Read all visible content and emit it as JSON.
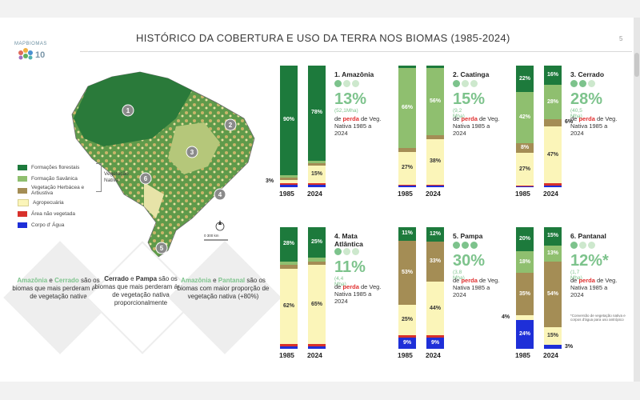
{
  "header": {
    "logo_num": "10",
    "logo_text": "MAPBIOMAS",
    "title": "HISTÓRICO DA COBERTURA E USO DA TERRA NOS BIOMAS (1985-2024)",
    "page_number": "5"
  },
  "colors": {
    "forest": "#1d7a3c",
    "savanna": "#8fbf6f",
    "herb": "#a48d55",
    "agro": "#fbf5b9",
    "nonveg": "#d8312b",
    "water": "#1e2fd8",
    "accent_green": "#7dc38c"
  },
  "legend": {
    "items": [
      {
        "label": "Formações florestais",
        "color": "#1d7a3c"
      },
      {
        "label": "Formação Savânica",
        "color": "#8fbf6f"
      },
      {
        "label": "Vegetação Herbácea e Arbustiva",
        "color": "#a48d55"
      },
      {
        "label": "Agropecuária",
        "color": "#fbf5b9"
      },
      {
        "label": "Área não vegetada",
        "color": "#d8312b"
      },
      {
        "label": "Corpo d' Água",
        "color": "#1e2fd8"
      }
    ],
    "bracket_label": "Vegetação Nativa",
    "scale_label": "0        300 km"
  },
  "map_markers": [
    "1",
    "2",
    "3",
    "4",
    "5",
    "6"
  ],
  "diamonds": [
    {
      "highlight1": "Amazônia",
      "mid1": " e ",
      "highlight2": "Cerrado",
      "rest": " são os biomas que mais perderam área de vegetação nativa"
    },
    {
      "highlight1": "Cerrado",
      "mid1": " e ",
      "highlight2": "Pampa",
      "rest": " são os biomas que mais perderam área de vegetação nativa proporcionalmente"
    },
    {
      "highlight1": "Amazônia",
      "mid1": " e ",
      "highlight2": "Pantanal",
      "rest": " são os biomas com maior proporção de vegetação nativa (+80%)"
    }
  ],
  "chart_data": [
    {
      "type": "bar",
      "title": "1. Amazônia",
      "categories": [
        "1985",
        "2024"
      ],
      "series": [
        {
          "name": "Formações florestais",
          "values": [
            90,
            78
          ]
        },
        {
          "name": "Formação Savânica",
          "values": [
            2,
            2
          ]
        },
        {
          "name": "Vegetação Herbácea e Arbustiva",
          "values": [
            2,
            2
          ]
        },
        {
          "name": "Agropecuária",
          "values": [
            3,
            15
          ]
        },
        {
          "name": "Área não vegetada",
          "values": [
            1,
            1
          ]
        },
        {
          "name": "Corpo d' Água",
          "values": [
            2,
            2
          ]
        }
      ],
      "labels": [
        [
          "90%",
          "",
          "",
          "3%",
          "",
          ""
        ],
        [
          "78%",
          "",
          "",
          "15%",
          "",
          ""
        ]
      ],
      "dots_filled": 1,
      "dots_total": 3,
      "big_number": "13%",
      "small_value": "(52,1Mha)",
      "desc_pre": "de ",
      "desc_red": "perda",
      "desc_post": " de Veg. Nativa 1985 a 2024"
    },
    {
      "type": "bar",
      "title": "2. Caatinga",
      "categories": [
        "1985",
        "2024"
      ],
      "series": [
        {
          "name": "Formações florestais",
          "values": [
            2,
            2
          ]
        },
        {
          "name": "Formação Savânica",
          "values": [
            66,
            56
          ]
        },
        {
          "name": "Vegetação Herbácea e Arbustiva",
          "values": [
            3,
            3
          ]
        },
        {
          "name": "Agropecuária",
          "values": [
            27,
            38
          ]
        },
        {
          "name": "Área não vegetada",
          "values": [
            1,
            1
          ]
        },
        {
          "name": "Corpo d' Água",
          "values": [
            1,
            1
          ]
        }
      ],
      "labels": [
        [
          "",
          "66%",
          "",
          "27%",
          "",
          ""
        ],
        [
          "",
          "56%",
          "",
          "38%",
          "",
          ""
        ]
      ],
      "dots_filled": 1,
      "dots_total": 3,
      "big_number": "15%",
      "small_value": "(9,2 Mha)",
      "desc_pre": "de ",
      "desc_red": "perda",
      "desc_post": " de Veg. Nativa 1985 a 2024"
    },
    {
      "type": "bar",
      "title": "3. Cerrado",
      "categories": [
        "1985",
        "2024"
      ],
      "series": [
        {
          "name": "Formações florestais",
          "values": [
            22,
            16
          ]
        },
        {
          "name": "Formação Savânica",
          "values": [
            42,
            28
          ]
        },
        {
          "name": "Vegetação Herbácea e Arbustiva",
          "values": [
            8,
            6
          ]
        },
        {
          "name": "Agropecuária",
          "values": [
            27,
            47
          ]
        },
        {
          "name": "Área não vegetada",
          "values": [
            0.5,
            1.5
          ]
        },
        {
          "name": "Corpo d' Água",
          "values": [
            0.5,
            1.5
          ]
        }
      ],
      "labels": [
        [
          "22%",
          "42%",
          "8%",
          "27%",
          "",
          ""
        ],
        [
          "16%",
          "28%",
          "6%",
          "47%",
          "",
          ""
        ]
      ],
      "dots_filled": 2,
      "dots_total": 3,
      "big_number": "28%",
      "small_value": "(40,5 Mha)",
      "desc_pre": "de ",
      "desc_red": "perda",
      "desc_post": " de Veg. Nativa 1985 a 2024"
    },
    {
      "type": "bar",
      "title": "4. Mata Atlântica",
      "categories": [
        "1985",
        "2024"
      ],
      "series": [
        {
          "name": "Formações florestais",
          "values": [
            28,
            25
          ]
        },
        {
          "name": "Formação Savânica",
          "values": [
            3,
            3
          ]
        },
        {
          "name": "Vegetação Herbácea e Arbustiva",
          "values": [
            3,
            3
          ]
        },
        {
          "name": "Agropecuária",
          "values": [
            62,
            65
          ]
        },
        {
          "name": "Área não vegetada",
          "values": [
            2,
            2
          ]
        },
        {
          "name": "Corpo d' Água",
          "values": [
            2,
            2
          ]
        }
      ],
      "labels": [
        [
          "28%",
          "",
          "",
          "62%",
          "",
          ""
        ],
        [
          "25%",
          "",
          "",
          "65%",
          "",
          ""
        ]
      ],
      "dots_filled": 1,
      "dots_total": 3,
      "big_number": "11%",
      "small_value": "(4,4 Mha)",
      "desc_pre": "de ",
      "desc_red": "perda",
      "desc_post": " de Veg. Nativa 1985 a 2024"
    },
    {
      "type": "bar",
      "title": "5. Pampa",
      "categories": [
        "1985",
        "2024"
      ],
      "series": [
        {
          "name": "Formações florestais",
          "values": [
            11,
            12
          ]
        },
        {
          "name": "Formação Savânica",
          "values": [
            0,
            0
          ]
        },
        {
          "name": "Vegetação Herbácea e Arbustiva",
          "values": [
            53,
            33
          ]
        },
        {
          "name": "Agropecuária",
          "values": [
            25,
            44
          ]
        },
        {
          "name": "Área não vegetada",
          "values": [
            2,
            2
          ]
        },
        {
          "name": "Corpo d' Água",
          "values": [
            9,
            9
          ]
        }
      ],
      "labels": [
        [
          "11%",
          "",
          "53%",
          "25%",
          "",
          "9%"
        ],
        [
          "12%",
          "",
          "33%",
          "44%",
          "",
          "9%"
        ]
      ],
      "dots_filled": 3,
      "dots_total": 3,
      "big_number": "30%",
      "small_value": "(3,8 Mha)",
      "desc_pre": "de ",
      "desc_red": "perda",
      "desc_post": " de Veg. Nativa 1985 a 2024"
    },
    {
      "type": "bar",
      "title": "6. Pantanal",
      "categories": [
        "1985",
        "2024"
      ],
      "series": [
        {
          "name": "Formações florestais",
          "values": [
            20,
            15
          ]
        },
        {
          "name": "Formação Savânica",
          "values": [
            18,
            13
          ]
        },
        {
          "name": "Vegetação Herbácea e Arbustiva",
          "values": [
            35,
            54
          ]
        },
        {
          "name": "Agropecuária",
          "values": [
            4,
            15
          ]
        },
        {
          "name": "Área não vegetada",
          "values": [
            0,
            0
          ]
        },
        {
          "name": "Corpo d' Água",
          "values": [
            24,
            3
          ]
        }
      ],
      "labels": [
        [
          "20%",
          "18%",
          "35%",
          "4%",
          "",
          "24%"
        ],
        [
          "15%",
          "13%",
          "54%",
          "15%",
          "",
          "3%"
        ]
      ],
      "dots_filled": 1,
      "dots_total": 3,
      "big_number": "12%*",
      "small_value": "(1,7 Mha)",
      "desc_pre": "de ",
      "desc_red": "perda",
      "desc_post": " de Veg. Nativa 1985 a 2024",
      "note": "*Conversão de vegetação nativa e corpos d'água para uso antrópico"
    }
  ]
}
